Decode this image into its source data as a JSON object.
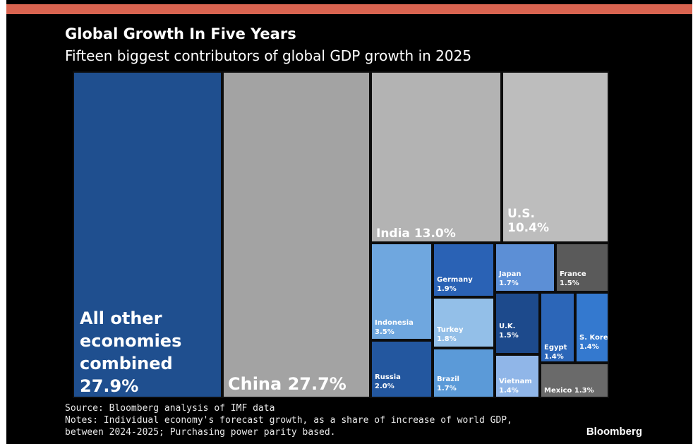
{
  "header": {
    "title": "Global Growth In Five Years",
    "subtitle": "Fifteen biggest contributors of global GDP growth in 2025"
  },
  "footer": {
    "source": "Source: Bloomberg analysis of IMF data",
    "notes_line1": "Notes: Individual economy's forecast growth, as a share of increase of world GDP,",
    "notes_line2": "between 2024-2025; Purchasing power parity based.",
    "brand": "Bloomberg"
  },
  "chart_data": {
    "type": "treemap",
    "title": "Global Growth In Five Years",
    "subtitle": "Fifteen biggest contributors of global GDP growth in 2025",
    "unit": "% share of increase of world GDP",
    "items": [
      {
        "name": "All other economies combined",
        "value": 27.9,
        "value_label": "27.9%",
        "color": "#1f4f8f"
      },
      {
        "name": "China",
        "value": 27.7,
        "value_label": "27.7%",
        "color": "#a3a3a3"
      },
      {
        "name": "India",
        "value": 13.0,
        "value_label": "13.0%",
        "color": "#b3b3b3"
      },
      {
        "name": "U.S.",
        "value": 10.4,
        "value_label": "10.4%",
        "color": "#bdbdbd"
      },
      {
        "name": "Indonesia",
        "value": 3.5,
        "value_label": "3.5%",
        "color": "#6fa7df"
      },
      {
        "name": "Germany",
        "value": 1.9,
        "value_label": "1.9%",
        "color": "#2a62b5"
      },
      {
        "name": "Russia",
        "value": 2.0,
        "value_label": "2.0%",
        "color": "#23579f"
      },
      {
        "name": "Turkey",
        "value": 1.8,
        "value_label": "1.8%",
        "color": "#93bfe8"
      },
      {
        "name": "Brazil",
        "value": 1.7,
        "value_label": "1.7%",
        "color": "#5b9ad8"
      },
      {
        "name": "Japan",
        "value": 1.7,
        "value_label": "1.7%",
        "color": "#5c8fd6"
      },
      {
        "name": "France",
        "value": 1.5,
        "value_label": "1.5%",
        "color": "#5a5a5a"
      },
      {
        "name": "U.K.",
        "value": 1.5,
        "value_label": "1.5%",
        "color": "#1d4a8c"
      },
      {
        "name": "Vietnam",
        "value": 1.4,
        "value_label": "1.4%",
        "color": "#90b6e8"
      },
      {
        "name": "Egypt",
        "value": 1.4,
        "value_label": "1.4%",
        "color": "#2c66b8"
      },
      {
        "name": "S. Korea",
        "value": 1.4,
        "value_label": "1.4%",
        "color": "#3479cf"
      },
      {
        "name": "Mexico",
        "value": 1.3,
        "value_label": "1.3%",
        "color": "#6a6a6a"
      }
    ]
  }
}
